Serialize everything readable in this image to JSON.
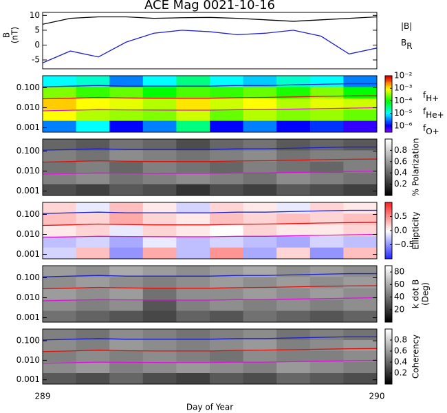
{
  "chart_data": [
    {
      "type": "line",
      "title": "ACE Mag 0021-10-16",
      "y_label": [
        "B",
        "(nT)"
      ],
      "x": [
        289,
        289.083,
        289.167,
        289.25,
        289.333,
        289.417,
        289.5,
        289.583,
        289.667,
        289.75,
        289.833,
        289.917,
        290
      ],
      "xlim": [
        289,
        290
      ],
      "ylim": [
        -8,
        11
      ],
      "yticks": [
        -5,
        0,
        5,
        10
      ],
      "series": [
        {
          "name": "|B|",
          "color": "#000000",
          "values": [
            7,
            9,
            9.5,
            9.5,
            9,
            9.2,
            9.3,
            9,
            8.5,
            8,
            8.5,
            9,
            9.5
          ]
        },
        {
          "name": "B",
          "subscript": "R",
          "color": "#1f1fd0",
          "values": [
            -6,
            -2,
            -4,
            1,
            4,
            5,
            4.5,
            3.5,
            4,
            5,
            3,
            -3,
            -1
          ]
        }
      ]
    },
    {
      "type": "heatmap",
      "log_y": true,
      "colormap": "rainbow",
      "x": [
        289,
        289.083,
        289.167,
        289.25,
        289.333,
        289.417,
        289.5,
        289.583,
        289.667,
        289.75,
        289.833,
        289.917,
        290
      ],
      "xlim": [
        289,
        290
      ],
      "ylim": [
        0.0006,
        0.4
      ],
      "yticks": [
        {
          "value": 0.1,
          "label": "0.100"
        },
        {
          "value": 0.01,
          "label": "0.010"
        },
        {
          "value": 0.001,
          "label": "0.001"
        }
      ],
      "zlim": [
        -6.5,
        -2
      ],
      "zticks": [
        {
          "value": -2,
          "label": "10⁻²"
        },
        {
          "value": -3,
          "label": "10⁻³"
        },
        {
          "value": -4,
          "label": "10⁻⁴"
        },
        {
          "value": -5,
          "label": "10⁻⁵"
        },
        {
          "value": -6,
          "label": "10⁻⁶"
        }
      ],
      "z": [
        [
          -5,
          -4.8,
          -5.5,
          -5,
          -4.5,
          -5,
          -5.2,
          -4.8,
          -5,
          -5.5
        ],
        [
          -3.5,
          -3.8,
          -3.6,
          -4,
          -3.7,
          -3.8,
          -3.6,
          -3.9,
          -3.5,
          -4
        ],
        [
          -2.8,
          -3,
          -3.1,
          -3.3,
          -2.9,
          -3.2,
          -3,
          -3.3,
          -3.1,
          -3.2
        ],
        [
          -3,
          -3.3,
          -3.4,
          -3.5,
          -3.2,
          -3.6,
          -3.3,
          -3.5,
          -3.4,
          -3.6
        ],
        [
          -5.5,
          -5,
          -6,
          -5.5,
          -4.5,
          -6,
          -5.5,
          -6,
          -5.8,
          -6.2
        ]
      ],
      "series": [
        {
          "name": "f",
          "subscript": "H+",
          "color": "#1f1fd0",
          "values": [
            0.11,
            0.12,
            0.13,
            0.12,
            0.12,
            0.12,
            0.12,
            0.13,
            0.13,
            0.14,
            0.15,
            0.16,
            0.16
          ]
        },
        {
          "name": "f",
          "subscript": "He+",
          "color": "#e01010",
          "values": [
            0.028,
            0.03,
            0.033,
            0.031,
            0.03,
            0.03,
            0.03,
            0.032,
            0.033,
            0.035,
            0.037,
            0.039,
            0.04
          ]
        },
        {
          "name": "f",
          "subscript": "O+",
          "color": "#e010e0",
          "values": [
            0.007,
            0.0075,
            0.008,
            0.0078,
            0.0077,
            0.0076,
            0.0076,
            0.008,
            0.008,
            0.0085,
            0.009,
            0.0095,
            0.01
          ]
        }
      ]
    },
    {
      "type": "heatmap",
      "log_y": true,
      "colormap": "gray",
      "colorbar_label": "% Polarization",
      "x": [
        289,
        289.083,
        289.167,
        289.25,
        289.333,
        289.417,
        289.5,
        289.583,
        289.667,
        289.75,
        289.833,
        289.917,
        290
      ],
      "xlim": [
        289,
        290
      ],
      "ylim": [
        0.0006,
        0.4
      ],
      "yticks": [
        {
          "value": 0.1,
          "label": "0.100"
        },
        {
          "value": 0.01,
          "label": "0.010"
        },
        {
          "value": 0.001,
          "label": "0.001"
        }
      ],
      "zlim": [
        0,
        1
      ],
      "zticks": [
        0.2,
        0.4,
        0.6,
        0.8
      ],
      "z": [
        [
          0.4,
          0.35,
          0.45,
          0.4,
          0.3,
          0.4,
          0.45,
          0.35,
          0.4,
          0.35
        ],
        [
          0.5,
          0.45,
          0.55,
          0.5,
          0.45,
          0.5,
          0.55,
          0.45,
          0.5,
          0.5
        ],
        [
          0.45,
          0.5,
          0.4,
          0.5,
          0.45,
          0.4,
          0.5,
          0.45,
          0.4,
          0.5
        ],
        [
          0.5,
          0.55,
          0.45,
          0.5,
          0.55,
          0.5,
          0.45,
          0.55,
          0.5,
          0.45
        ],
        [
          0.3,
          0.25,
          0.35,
          0.3,
          0.2,
          0.3,
          0.25,
          0.35,
          0.3,
          0.25
        ]
      ],
      "series": [
        {
          "color": "#1f1fd0",
          "values": [
            0.11,
            0.12,
            0.13,
            0.12,
            0.12,
            0.12,
            0.12,
            0.13,
            0.13,
            0.14,
            0.15,
            0.16,
            0.16
          ]
        },
        {
          "color": "#e01010",
          "values": [
            0.028,
            0.03,
            0.033,
            0.031,
            0.03,
            0.03,
            0.03,
            0.032,
            0.033,
            0.035,
            0.037,
            0.039,
            0.04
          ]
        },
        {
          "color": "#e010e0",
          "values": [
            0.007,
            0.0075,
            0.008,
            0.0078,
            0.0077,
            0.0076,
            0.0076,
            0.008,
            0.008,
            0.0085,
            0.009,
            0.0095,
            0.01
          ]
        }
      ]
    },
    {
      "type": "heatmap",
      "log_y": true,
      "colormap": "bwr",
      "colorbar_label": "Ellipticity",
      "x": [
        289,
        289.083,
        289.167,
        289.25,
        289.333,
        289.417,
        289.5,
        289.583,
        289.667,
        289.75,
        289.833,
        289.917,
        290
      ],
      "xlim": [
        289,
        290
      ],
      "ylim": [
        0.0006,
        0.4
      ],
      "yticks": [
        {
          "value": 0.1,
          "label": "0.100"
        },
        {
          "value": 0.01,
          "label": "0.010"
        },
        {
          "value": 0.001,
          "label": "0.001"
        }
      ],
      "zlim": [
        -1,
        1
      ],
      "zticks": [
        {
          "value": 0.5,
          "label": "0.5"
        },
        {
          "value": 0,
          "label": "0.0"
        },
        {
          "value": -0.5,
          "label": "−0.5"
        }
      ],
      "z": [
        [
          0.2,
          -0.1,
          0.3,
          0.1,
          -0.2,
          0.2,
          0.1,
          -0.1,
          0.2,
          0.1
        ],
        [
          0.3,
          0.2,
          0.4,
          0.2,
          0.1,
          0.3,
          0.2,
          0.3,
          0.2,
          0.3
        ],
        [
          0.1,
          0.2,
          -0.1,
          0.2,
          0.1,
          0,
          0.2,
          0.1,
          0.1,
          0.2
        ],
        [
          -0.3,
          -0.2,
          -0.4,
          -0.1,
          -0.3,
          -0.2,
          -0.3,
          -0.4,
          -0.2,
          -0.3
        ],
        [
          -0.2,
          0.3,
          -0.5,
          0.4,
          -0.3,
          0.5,
          -0.4,
          0.2,
          -0.5,
          0.3
        ]
      ],
      "series": [
        {
          "color": "#1f1fd0",
          "values": [
            0.11,
            0.12,
            0.13,
            0.12,
            0.12,
            0.12,
            0.12,
            0.13,
            0.13,
            0.14,
            0.15,
            0.16,
            0.16
          ]
        },
        {
          "color": "#e01010",
          "values": [
            0.028,
            0.03,
            0.033,
            0.031,
            0.03,
            0.03,
            0.03,
            0.032,
            0.033,
            0.035,
            0.037,
            0.039,
            0.04
          ]
        },
        {
          "color": "#e010e0",
          "values": [
            0.007,
            0.0075,
            0.008,
            0.0078,
            0.0077,
            0.0076,
            0.0076,
            0.008,
            0.008,
            0.0085,
            0.009,
            0.0095,
            0.01
          ]
        }
      ]
    },
    {
      "type": "heatmap",
      "log_y": true,
      "colormap": "gray",
      "colorbar_label": [
        "k dot B",
        "(Deg)"
      ],
      "x": [
        289,
        289.083,
        289.167,
        289.25,
        289.333,
        289.417,
        289.5,
        289.583,
        289.667,
        289.75,
        289.833,
        289.917,
        290
      ],
      "xlim": [
        289,
        290
      ],
      "ylim": [
        0.0006,
        0.4
      ],
      "yticks": [
        {
          "value": 0.1,
          "label": "0.100"
        },
        {
          "value": 0.01,
          "label": "0.010"
        },
        {
          "value": 0.001,
          "label": "0.001"
        }
      ],
      "zlim": [
        0,
        90
      ],
      "zticks": [
        20,
        40,
        60,
        80
      ],
      "z": [
        [
          55,
          50,
          60,
          55,
          50,
          55,
          60,
          50,
          55,
          50
        ],
        [
          50,
          55,
          50,
          45,
          50,
          55,
          50,
          55,
          50,
          55
        ],
        [
          55,
          50,
          55,
          40,
          50,
          50,
          55,
          50,
          55,
          50
        ],
        [
          50,
          45,
          50,
          30,
          45,
          50,
          45,
          50,
          45,
          50
        ],
        [
          40,
          35,
          30,
          25,
          35,
          30,
          40,
          35,
          30,
          35
        ]
      ],
      "series": [
        {
          "color": "#1f1fd0",
          "values": [
            0.11,
            0.12,
            0.13,
            0.12,
            0.12,
            0.12,
            0.12,
            0.13,
            0.13,
            0.14,
            0.15,
            0.16,
            0.16
          ]
        },
        {
          "color": "#e01010",
          "values": [
            0.028,
            0.03,
            0.033,
            0.031,
            0.03,
            0.03,
            0.03,
            0.032,
            0.033,
            0.035,
            0.037,
            0.039,
            0.04
          ]
        },
        {
          "color": "#e010e0",
          "values": [
            0.007,
            0.0075,
            0.008,
            0.0078,
            0.0077,
            0.0076,
            0.0076,
            0.008,
            0.008,
            0.0085,
            0.009,
            0.0095,
            0.01
          ]
        }
      ]
    },
    {
      "type": "heatmap",
      "log_y": true,
      "colormap": "gray",
      "colorbar_label": "Coherency",
      "x_label": "Day of Year",
      "x": [
        289,
        289.083,
        289.167,
        289.25,
        289.333,
        289.417,
        289.5,
        289.583,
        289.667,
        289.75,
        289.833,
        289.917,
        290
      ],
      "xlim": [
        289,
        290
      ],
      "xticks": [
        289,
        290
      ],
      "ylim": [
        0.0006,
        0.4
      ],
      "yticks": [
        {
          "value": 0.1,
          "label": "0.100"
        },
        {
          "value": 0.01,
          "label": "0.010"
        },
        {
          "value": 0.001,
          "label": "0.001"
        }
      ],
      "zlim": [
        0,
        1
      ],
      "zticks": [
        0.2,
        0.4,
        0.6,
        0.8
      ],
      "z": [
        [
          0.5,
          0.45,
          0.55,
          0.5,
          0.45,
          0.5,
          0.55,
          0.45,
          0.5,
          0.45
        ],
        [
          0.55,
          0.5,
          0.6,
          0.55,
          0.5,
          0.55,
          0.6,
          0.5,
          0.55,
          0.6
        ],
        [
          0.5,
          0.55,
          0.5,
          0.55,
          0.5,
          0.45,
          0.55,
          0.5,
          0.5,
          0.55
        ],
        [
          0.55,
          0.6,
          0.5,
          0.55,
          0.6,
          0.55,
          0.5,
          0.6,
          0.55,
          0.5
        ],
        [
          0.35,
          0.3,
          0.4,
          0.3,
          0.25,
          0.35,
          0.3,
          0.4,
          0.35,
          0.3
        ]
      ],
      "series": [
        {
          "color": "#1f1fd0",
          "values": [
            0.11,
            0.12,
            0.13,
            0.12,
            0.12,
            0.12,
            0.12,
            0.13,
            0.13,
            0.14,
            0.15,
            0.16,
            0.16
          ]
        },
        {
          "color": "#e01010",
          "values": [
            0.028,
            0.03,
            0.033,
            0.031,
            0.03,
            0.03,
            0.03,
            0.032,
            0.033,
            0.035,
            0.037,
            0.039,
            0.04
          ]
        },
        {
          "color": "#e010e0",
          "values": [
            0.007,
            0.0075,
            0.008,
            0.0078,
            0.0077,
            0.0076,
            0.0076,
            0.008,
            0.008,
            0.0085,
            0.009,
            0.0095,
            0.01
          ]
        }
      ]
    }
  ]
}
